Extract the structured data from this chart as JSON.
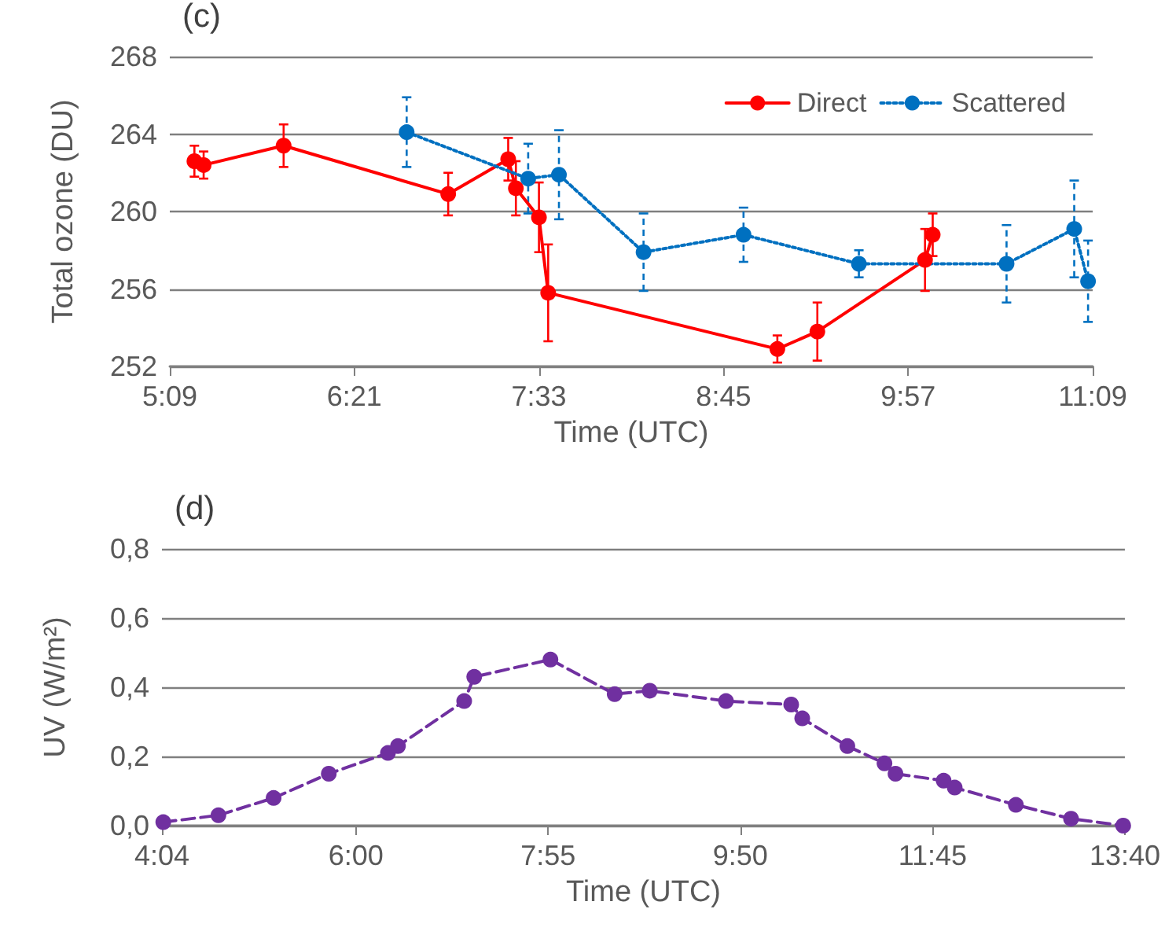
{
  "chart_data": [
    {
      "type": "line",
      "annotations": [
        "(c)"
      ],
      "xlabel": "Time (UTC)",
      "ylabel": "Total ozone (DU)",
      "xlim": [
        5.15,
        11.15
      ],
      "xticks": [
        {
          "value": 5.15,
          "label": "5:09"
        },
        {
          "value": 6.35,
          "label": "6:21"
        },
        {
          "value": 7.55,
          "label": "7:33"
        },
        {
          "value": 8.75,
          "label": "8:45"
        },
        {
          "value": 9.95,
          "label": "9:57"
        },
        {
          "value": 11.15,
          "label": "11:09"
        }
      ],
      "ylim": [
        252,
        268
      ],
      "yticks": [
        252,
        256,
        260,
        264,
        268
      ],
      "grid": "y",
      "legend": "top right",
      "marker": "circle",
      "series": [
        {
          "name": "Direct",
          "color": "#ff0000",
          "line_style": "solid",
          "x": [
            5.31,
            5.37,
            5.89,
            6.96,
            7.35,
            7.4,
            7.55,
            7.61,
            9.1,
            9.36,
            10.06,
            10.11
          ],
          "values": [
            262.6,
            262.4,
            263.4,
            260.9,
            262.7,
            261.2,
            259.7,
            255.8,
            252.9,
            253.8,
            257.5,
            258.8
          ],
          "errors": [
            0.8,
            0.7,
            1.1,
            1.1,
            1.1,
            1.4,
            1.8,
            2.5,
            0.7,
            1.5,
            1.6,
            1.1
          ]
        },
        {
          "name": "Scattered",
          "color": "#0070c0",
          "line_style": "dotted",
          "x": [
            6.69,
            7.48,
            7.68,
            8.23,
            8.88,
            9.63,
            10.59,
            11.03,
            11.12
          ],
          "values": [
            264.1,
            261.7,
            261.9,
            257.9,
            258.8,
            257.3,
            257.3,
            259.1,
            256.4
          ],
          "errors": [
            1.8,
            1.8,
            2.3,
            2.0,
            1.4,
            0.7,
            2.0,
            2.5,
            2.1
          ]
        }
      ]
    },
    {
      "type": "line",
      "annotations": [
        "(d)"
      ],
      "xlabel": "Time (UTC)",
      "ylabel": "UV (W/m²)",
      "xlim": [
        4.0667,
        13.6667
      ],
      "xticks": [
        {
          "value": 4.0667,
          "label": "4:04"
        },
        {
          "value": 6.0,
          "label": "6:00"
        },
        {
          "value": 7.9167,
          "label": "7:55"
        },
        {
          "value": 9.8333,
          "label": "9:50"
        },
        {
          "value": 11.75,
          "label": "11:45"
        },
        {
          "value": 13.6667,
          "label": "13:40"
        }
      ],
      "ylim": [
        0,
        0.8
      ],
      "yticks": [
        {
          "value": 0,
          "label": "0,0"
        },
        {
          "value": 0.2,
          "label": "0,2"
        },
        {
          "value": 0.4,
          "label": "0,4"
        },
        {
          "value": 0.6,
          "label": "0,6"
        },
        {
          "value": 0.8,
          "label": "0,8"
        }
      ],
      "grid": "y",
      "marker": "circle",
      "line_style": "dashed",
      "series": [
        {
          "color": "#7030a0",
          "x": [
            4.08,
            4.63,
            5.18,
            5.73,
            6.32,
            6.42,
            7.08,
            7.18,
            7.94,
            8.58,
            8.93,
            9.69,
            10.34,
            10.45,
            10.9,
            11.27,
            11.38,
            11.86,
            11.97,
            12.58,
            13.13,
            13.65
          ],
          "values": [
            0.01,
            0.03,
            0.08,
            0.15,
            0.21,
            0.23,
            0.36,
            0.43,
            0.48,
            0.38,
            0.39,
            0.36,
            0.35,
            0.31,
            0.23,
            0.18,
            0.15,
            0.13,
            0.11,
            0.06,
            0.02,
            0.0
          ]
        }
      ]
    }
  ]
}
